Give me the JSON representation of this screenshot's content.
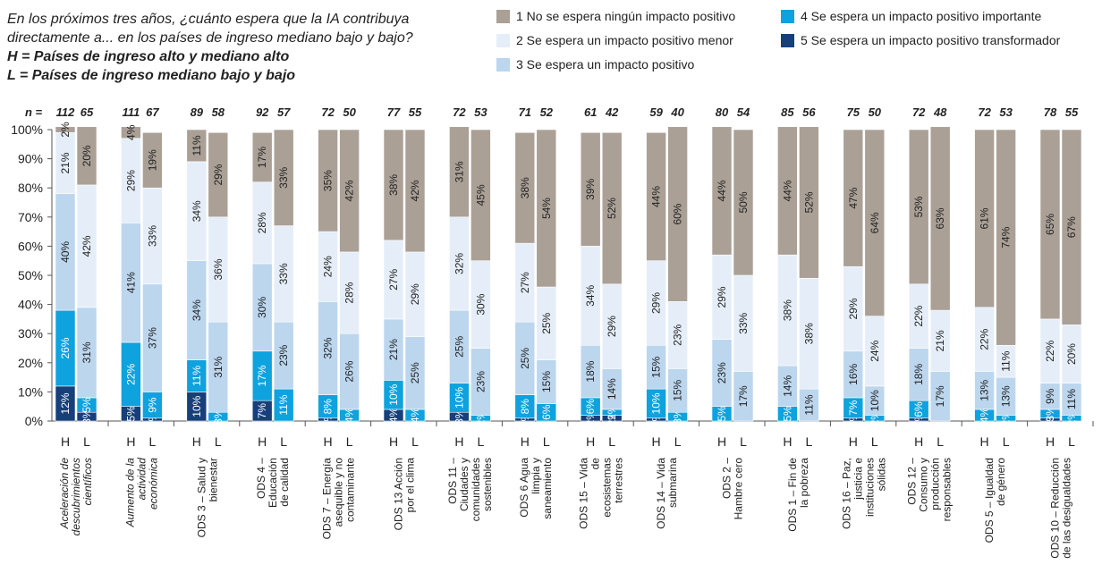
{
  "chart_data": {
    "type": "stacked_bar_pairs",
    "title_lines": [
      "En los próximos tres años, ¿cuánto espera que la IA contribuya",
      "directamente a... en los países de ingreso mediano bajo y bajo?"
    ],
    "key_lines": [
      "H = Países de ingreso alto y mediano alto",
      "L = Países de ingreso mediano bajo y bajo"
    ],
    "n_label": "n =",
    "bar_labels": [
      "H",
      "L"
    ],
    "categories": [
      [
        "Aceleración de",
        "descubrimientos",
        "científicos"
      ],
      [
        "Aumento de la",
        "actividad",
        "económica"
      ],
      [
        "ODS 3 – Salud y",
        "bienestar"
      ],
      [
        "ODS 4 –",
        "Educación",
        "de calidad"
      ],
      [
        "ODS 7 – Energía",
        "asequible y no",
        "contaminante"
      ],
      [
        "ODS 13 Acción",
        "por el clima"
      ],
      [
        "ODS 11 –",
        "Ciudades y",
        "comunidades",
        "sostenibles"
      ],
      [
        "ODS 6 Agua",
        "limpia y",
        "saneamiento"
      ],
      [
        "ODS 15 – Vida",
        "de",
        "ecosistemas",
        "terrestres"
      ],
      [
        "ODS 14 – Vida",
        "submarina"
      ],
      [
        "ODS 2 –",
        "Hambre cero"
      ],
      [
        "ODS 1 – Fin de",
        "la pobreza"
      ],
      [
        "ODS 16 – Paz,",
        "justicia e",
        "instituciones",
        "sólidas"
      ],
      [
        "ODS 12 –",
        "Consumo y",
        "producción",
        "responsables"
      ],
      [
        "ODS 5 – Igualdad",
        "de género"
      ],
      [
        "ODS 10 – Reducción",
        "de las desigualdades"
      ]
    ],
    "n": [
      [
        112,
        65
      ],
      [
        111,
        67
      ],
      [
        89,
        58
      ],
      [
        92,
        57
      ],
      [
        72,
        50
      ],
      [
        77,
        55
      ],
      [
        72,
        53
      ],
      [
        71,
        52
      ],
      [
        61,
        42
      ],
      [
        59,
        40
      ],
      [
        80,
        54
      ],
      [
        85,
        56
      ],
      [
        75,
        50
      ],
      [
        72,
        48
      ],
      [
        72,
        53
      ],
      [
        78,
        55
      ]
    ],
    "ylim": [
      0,
      100
    ],
    "yticks": [
      {
        "value": 0,
        "label": "0%"
      },
      {
        "value": 10,
        "label": "10%"
      },
      {
        "value": 20,
        "label": "20%"
      },
      {
        "value": 30,
        "label": "30%"
      },
      {
        "value": 40,
        "label": "40%"
      },
      {
        "value": 50,
        "label": "50%"
      },
      {
        "value": 60,
        "label": "60%"
      },
      {
        "value": 70,
        "label": "70%"
      },
      {
        "value": 80,
        "label": "80%"
      },
      {
        "value": 90,
        "label": "90%"
      },
      {
        "value": 100,
        "label": "100%"
      }
    ],
    "series": [
      {
        "name": "1 No se espera ningún impacto positivo",
        "color": "#aaa096",
        "values": [
          [
            2,
            20
          ],
          [
            4,
            19
          ],
          [
            11,
            29
          ],
          [
            17,
            33
          ],
          [
            35,
            42
          ],
          [
            38,
            42
          ],
          [
            31,
            45
          ],
          [
            38,
            54
          ],
          [
            39,
            52
          ],
          [
            44,
            60
          ],
          [
            44,
            50
          ],
          [
            44,
            52
          ],
          [
            47,
            64
          ],
          [
            53,
            63
          ],
          [
            61,
            74
          ],
          [
            65,
            67
          ]
        ],
        "value_labels": [
          [
            "2%",
            "20%"
          ],
          [
            "4%",
            "19%"
          ],
          [
            "11%",
            "29%"
          ],
          [
            "17%",
            "33%"
          ],
          [
            "35%",
            "42%"
          ],
          [
            "38%",
            "42%"
          ],
          [
            "31%",
            "45%"
          ],
          [
            "38%",
            "54%"
          ],
          [
            "39%",
            "52%"
          ],
          [
            "44%",
            "60%"
          ],
          [
            "44%",
            "50%"
          ],
          [
            "44%",
            "52%"
          ],
          [
            "47%",
            "64%"
          ],
          [
            "53%",
            "63%"
          ],
          [
            "61%",
            "74%"
          ],
          [
            "65%",
            "67%"
          ]
        ]
      },
      {
        "name": "2 Se espera un impacto positivo menor",
        "color": "#e5eef8",
        "values": [
          [
            21,
            42
          ],
          [
            29,
            33
          ],
          [
            34,
            36
          ],
          [
            28,
            33
          ],
          [
            24,
            28
          ],
          [
            27,
            29
          ],
          [
            32,
            30
          ],
          [
            27,
            25
          ],
          [
            34,
            29
          ],
          [
            29,
            23
          ],
          [
            29,
            33
          ],
          [
            38,
            38
          ],
          [
            29,
            24
          ],
          [
            22,
            21
          ],
          [
            22,
            11
          ],
          [
            22,
            20
          ]
        ],
        "value_labels": [
          [
            "21%",
            "42%"
          ],
          [
            "29%",
            "33%"
          ],
          [
            "34%",
            "36%"
          ],
          [
            "28%",
            "33%"
          ],
          [
            "24%",
            "28%"
          ],
          [
            "27%",
            "29%"
          ],
          [
            "32%",
            "30%"
          ],
          [
            "27%",
            "25%"
          ],
          [
            "34%",
            "29%"
          ],
          [
            "29%",
            "23%"
          ],
          [
            "29%",
            "33%"
          ],
          [
            "38%",
            "38%"
          ],
          [
            "29%",
            "24%"
          ],
          [
            "22%",
            "21%"
          ],
          [
            "22%",
            "11%"
          ],
          [
            "22%",
            "20%"
          ]
        ]
      },
      {
        "name": "3 Se espera un impacto positivo",
        "color": "#bcd6ee",
        "values": [
          [
            40,
            31
          ],
          [
            41,
            37
          ],
          [
            34,
            31
          ],
          [
            30,
            23
          ],
          [
            32,
            26
          ],
          [
            21,
            25
          ],
          [
            25,
            23
          ],
          [
            25,
            15
          ],
          [
            18,
            14
          ],
          [
            15,
            15
          ],
          [
            23,
            17
          ],
          [
            14,
            11
          ],
          [
            16,
            10
          ],
          [
            18,
            17
          ],
          [
            13,
            13
          ],
          [
            9,
            11
          ]
        ],
        "value_labels": [
          [
            "40%",
            "31%"
          ],
          [
            "41%",
            "37%"
          ],
          [
            "34%",
            "31%"
          ],
          [
            "30%",
            "23%"
          ],
          [
            "32%",
            "26%"
          ],
          [
            "21%",
            "25%"
          ],
          [
            "25%",
            "23%"
          ],
          [
            "25%",
            "15%"
          ],
          [
            "18%",
            "14%"
          ],
          [
            "15%",
            "15%"
          ],
          [
            "23%",
            "17%"
          ],
          [
            "14%",
            "11%"
          ],
          [
            "16%",
            "10%"
          ],
          [
            "18%",
            "17%"
          ],
          [
            "13%",
            "13%"
          ],
          [
            "9%",
            "11%"
          ]
        ]
      },
      {
        "name": "4 Se espera un impacto positivo importante",
        "color": "#0ea2de",
        "values": [
          [
            26,
            5
          ],
          [
            22,
            9
          ],
          [
            11,
            3
          ],
          [
            17,
            11
          ],
          [
            8,
            4
          ],
          [
            10,
            4
          ],
          [
            10,
            2
          ],
          [
            8,
            6
          ],
          [
            6,
            2
          ],
          [
            10,
            3
          ],
          [
            5,
            0
          ],
          [
            5,
            0
          ],
          [
            7,
            2
          ],
          [
            6,
            0
          ],
          [
            4,
            2
          ],
          [
            3,
            2
          ]
        ],
        "value_labels": [
          [
            "26%",
            "5%"
          ],
          [
            "22%",
            "9%"
          ],
          [
            "11%",
            "3%"
          ],
          [
            "17%",
            "11%"
          ],
          [
            "8%",
            "4%"
          ],
          [
            "10%",
            "4%"
          ],
          [
            "10%",
            "2%"
          ],
          [
            "8%",
            "6%"
          ],
          [
            "6%",
            "2%"
          ],
          [
            "10%",
            "3%"
          ],
          [
            "5%",
            null
          ],
          [
            "5%",
            null
          ],
          [
            "7%",
            "2%"
          ],
          [
            "6%",
            null
          ],
          [
            "4%",
            "2%"
          ],
          [
            "3%",
            "2%"
          ]
        ]
      },
      {
        "name": "5 Se espera un impacto positivo transformador",
        "color": "#17407a",
        "values": [
          [
            12,
            3
          ],
          [
            5,
            1
          ],
          [
            10,
            0
          ],
          [
            7,
            0
          ],
          [
            1,
            0
          ],
          [
            4,
            0
          ],
          [
            3,
            0
          ],
          [
            1,
            0
          ],
          [
            2,
            2
          ],
          [
            1,
            0
          ],
          [
            0,
            0
          ],
          [
            0,
            0
          ],
          [
            1,
            0
          ],
          [
            1,
            0
          ],
          [
            0,
            0
          ],
          [
            1,
            0
          ]
        ],
        "value_labels": [
          [
            "12%",
            "3%"
          ],
          [
            "5%",
            "1%"
          ],
          [
            "10%",
            null
          ],
          [
            "7%",
            null
          ],
          [
            "1%",
            null
          ],
          [
            "4%",
            null
          ],
          [
            "3%",
            null
          ],
          [
            "1%",
            null
          ],
          [
            "2%",
            "2%"
          ],
          [
            "1%",
            null
          ],
          [
            null,
            null
          ],
          [
            null,
            null
          ],
          [
            "1%",
            null
          ],
          [
            "1%",
            null
          ],
          [
            null,
            null
          ],
          [
            "1%",
            null
          ]
        ]
      }
    ]
  }
}
